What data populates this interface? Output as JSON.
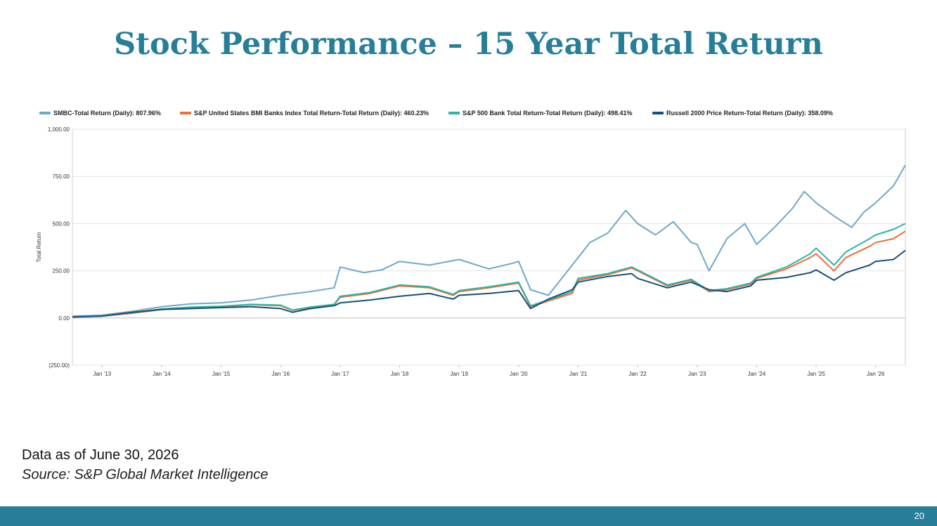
{
  "slide": {
    "title": "Stock Performance – 15 Year Total Return",
    "footnote": "Data as of June 30, 2026",
    "source": "Source: S&P Global Market Intelligence",
    "page_number": "20",
    "colors": {
      "title": "#277e99",
      "bar": "#277e99"
    }
  },
  "chart_data": {
    "type": "line",
    "title": "",
    "xlabel": "",
    "ylabel": "Total Return",
    "ylim": [
      -250,
      1000
    ],
    "yticks": [
      1000,
      750,
      500,
      250,
      0,
      -250
    ],
    "ytick_labels": [
      "1,000.00",
      "750.00",
      "500.00",
      "250.00",
      "0.00",
      "(250.00)"
    ],
    "xlim": [
      2012.5,
      2026.5
    ],
    "xticks": [
      2013,
      2014,
      2015,
      2016,
      2017,
      2018,
      2019,
      2020,
      2021,
      2022,
      2023,
      2024,
      2025,
      2026
    ],
    "xtick_labels": [
      "Jan '13",
      "Jan '14",
      "Jan '15",
      "Jan '16",
      "Jan '17",
      "Jan '18",
      "Jan '19",
      "Jan '20",
      "Jan '21",
      "Jan '22",
      "Jan '23",
      "Jan '24",
      "Jan '25",
      "Jan '26"
    ],
    "grid": true,
    "legend_position": "top",
    "series": [
      {
        "name": "SMBC-Total Return (Daily): 807.96%",
        "color": "#6fa8c7",
        "x": [
          2012.5,
          2013.0,
          2013.5,
          2014.0,
          2014.5,
          2015.0,
          2015.5,
          2016.0,
          2016.5,
          2016.9,
          2017.0,
          2017.4,
          2017.7,
          2018.0,
          2018.5,
          2019.0,
          2019.5,
          2019.9,
          2020.0,
          2020.2,
          2020.5,
          2020.9,
          2021.2,
          2021.5,
          2021.8,
          2022.0,
          2022.3,
          2022.6,
          2022.9,
          2023.0,
          2023.2,
          2023.5,
          2023.8,
          2024.0,
          2024.3,
          2024.6,
          2024.8,
          2025.0,
          2025.3,
          2025.6,
          2025.8,
          2026.0,
          2026.3,
          2026.5
        ],
        "y": [
          10,
          15,
          35,
          60,
          75,
          80,
          95,
          120,
          140,
          160,
          270,
          240,
          255,
          300,
          280,
          310,
          260,
          290,
          300,
          150,
          120,
          280,
          400,
          450,
          570,
          500,
          440,
          510,
          400,
          390,
          250,
          420,
          500,
          390,
          480,
          580,
          670,
          610,
          540,
          480,
          560,
          610,
          700,
          810
        ]
      },
      {
        "name": "S&P United States BMI Banks Index Total Return-Total Return (Daily): 460.23%",
        "color": "#e8703a",
        "x": [
          2012.5,
          2013.0,
          2013.5,
          2014.0,
          2014.5,
          2015.0,
          2015.5,
          2016.0,
          2016.2,
          2016.5,
          2016.9,
          2017.0,
          2017.5,
          2018.0,
          2018.5,
          2018.9,
          2019.0,
          2019.5,
          2020.0,
          2020.2,
          2020.5,
          2020.9,
          2021.0,
          2021.5,
          2021.9,
          2022.0,
          2022.5,
          2022.9,
          2023.2,
          2023.5,
          2023.9,
          2024.0,
          2024.5,
          2024.9,
          2025.0,
          2025.3,
          2025.5,
          2025.9,
          2026.0,
          2026.3,
          2026.5
        ],
        "y": [
          5,
          10,
          25,
          45,
          55,
          60,
          70,
          65,
          40,
          55,
          70,
          110,
          130,
          170,
          160,
          120,
          140,
          160,
          185,
          60,
          90,
          130,
          200,
          230,
          265,
          250,
          170,
          200,
          140,
          150,
          180,
          210,
          260,
          320,
          340,
          250,
          320,
          380,
          400,
          420,
          460
        ]
      },
      {
        "name": "S&P 500 Bank Total Return-Total Return (Daily): 498.41%",
        "color": "#2cb5a3",
        "x": [
          2012.5,
          2013.0,
          2013.5,
          2014.0,
          2014.5,
          2015.0,
          2015.5,
          2016.0,
          2016.2,
          2016.5,
          2016.9,
          2017.0,
          2017.5,
          2018.0,
          2018.5,
          2018.9,
          2019.0,
          2019.5,
          2020.0,
          2020.2,
          2020.5,
          2020.9,
          2021.0,
          2021.5,
          2021.9,
          2022.0,
          2022.5,
          2022.9,
          2023.2,
          2023.5,
          2023.9,
          2024.0,
          2024.5,
          2024.9,
          2025.0,
          2025.3,
          2025.5,
          2025.9,
          2026.0,
          2026.3,
          2026.5
        ],
        "y": [
          5,
          12,
          28,
          48,
          58,
          62,
          72,
          68,
          42,
          58,
          72,
          115,
          135,
          175,
          165,
          125,
          145,
          165,
          190,
          65,
          95,
          140,
          210,
          235,
          270,
          255,
          175,
          205,
          145,
          155,
          185,
          215,
          270,
          340,
          370,
          280,
          350,
          420,
          440,
          470,
          500
        ]
      },
      {
        "name": "Russell 2000 Price Return-Total Return (Daily): 358.09%",
        "color": "#184e7a",
        "x": [
          2012.5,
          2013.0,
          2013.5,
          2014.0,
          2014.5,
          2015.0,
          2015.5,
          2016.0,
          2016.2,
          2016.5,
          2016.9,
          2017.0,
          2017.5,
          2018.0,
          2018.5,
          2018.9,
          2019.0,
          2019.5,
          2020.0,
          2020.2,
          2020.5,
          2020.9,
          2021.0,
          2021.5,
          2021.9,
          2022.0,
          2022.5,
          2022.9,
          2023.2,
          2023.5,
          2023.9,
          2024.0,
          2024.5,
          2024.9,
          2025.0,
          2025.3,
          2025.5,
          2025.9,
          2026.0,
          2026.3,
          2026.5
        ],
        "y": [
          5,
          10,
          30,
          45,
          50,
          55,
          60,
          50,
          30,
          50,
          65,
          80,
          95,
          115,
          130,
          100,
          120,
          130,
          145,
          50,
          100,
          150,
          190,
          220,
          235,
          210,
          160,
          190,
          150,
          140,
          170,
          200,
          215,
          240,
          255,
          200,
          240,
          280,
          300,
          310,
          358
        ]
      }
    ]
  }
}
